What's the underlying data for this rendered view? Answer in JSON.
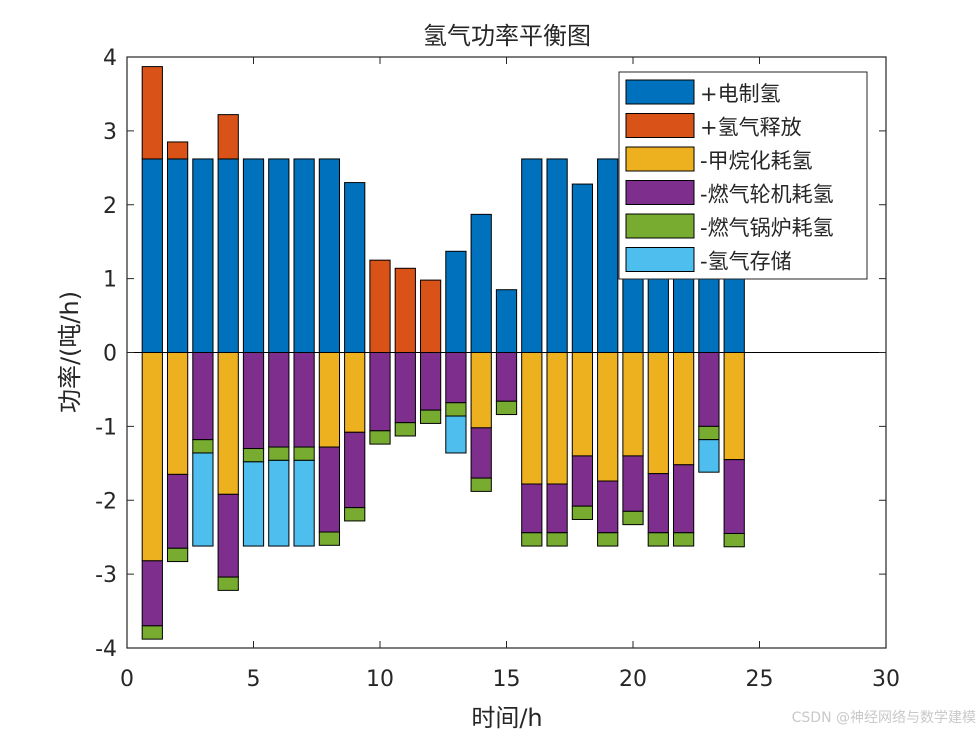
{
  "chart_data": {
    "type": "bar",
    "stacked": true,
    "title": "氢气功率平衡图",
    "xlabel": "时间/h",
    "ylabel": "功率/(吨/h)",
    "xlim": [
      0,
      30
    ],
    "ylim": [
      -4,
      4
    ],
    "xticks": [
      0,
      5,
      10,
      15,
      20,
      25,
      30
    ],
    "yticks": [
      -4,
      -3,
      -2,
      -1,
      0,
      1,
      2,
      3,
      4
    ],
    "legend_position": "top-right",
    "x": [
      1,
      2,
      3,
      4,
      5,
      6,
      7,
      8,
      9,
      10,
      11,
      12,
      13,
      14,
      15,
      16,
      17,
      18,
      19,
      20,
      21,
      22,
      23,
      24
    ],
    "series": [
      {
        "name": "+电制氢",
        "color": "#0072BD",
        "values": [
          2.62,
          2.62,
          2.62,
          2.62,
          2.62,
          2.62,
          2.62,
          2.62,
          2.3,
          0,
          0,
          0,
          1.37,
          1.87,
          0.85,
          2.62,
          2.62,
          2.28,
          2.62,
          2.62,
          2.62,
          2.62,
          2.62,
          2.62
        ]
      },
      {
        "name": "+氢气释放",
        "color": "#D95319",
        "values": [
          1.25,
          0.23,
          0,
          0.6,
          0,
          0,
          0,
          0,
          0,
          1.25,
          1.14,
          0.98,
          0,
          0,
          0,
          0,
          0,
          0,
          0,
          0,
          0,
          0,
          0,
          0
        ]
      },
      {
        "name": "-甲烷化耗氢",
        "color": "#EDB120",
        "values": [
          -2.82,
          -1.65,
          0,
          -1.92,
          0,
          0,
          0,
          -1.28,
          -1.08,
          0,
          0,
          0,
          0,
          -1.02,
          0,
          -1.78,
          -1.78,
          -1.4,
          -1.74,
          -1.4,
          -1.64,
          -1.52,
          0,
          -1.45
        ]
      },
      {
        "name": "-燃气轮机耗氢",
        "color": "#7E2F8E",
        "values": [
          -0.88,
          -1.0,
          -1.18,
          -1.12,
          -1.3,
          -1.28,
          -1.28,
          -1.15,
          -1.02,
          -1.06,
          -0.95,
          -0.78,
          -0.68,
          -0.68,
          -0.66,
          -0.66,
          -0.66,
          -0.68,
          -0.7,
          -0.75,
          -0.8,
          -0.92,
          -1.0,
          -1.0
        ]
      },
      {
        "name": "-燃气锅炉耗氢",
        "color": "#77AC30",
        "values": [
          -0.18,
          -0.18,
          -0.18,
          -0.18,
          -0.18,
          -0.18,
          -0.18,
          -0.18,
          -0.18,
          -0.18,
          -0.18,
          -0.18,
          -0.18,
          -0.18,
          -0.18,
          -0.18,
          -0.18,
          -0.18,
          -0.18,
          -0.18,
          -0.18,
          -0.18,
          -0.18,
          -0.18
        ]
      },
      {
        "name": "-氢气存储",
        "color": "#4DBEEE",
        "values": [
          0,
          0,
          -1.26,
          0,
          -1.14,
          -1.16,
          -1.16,
          0,
          0,
          0,
          0,
          0,
          -0.5,
          0,
          0,
          0,
          0,
          0,
          0,
          0,
          0,
          0,
          -0.44,
          0
        ]
      }
    ]
  },
  "watermark": "CSDN @神经网络与数学建模"
}
